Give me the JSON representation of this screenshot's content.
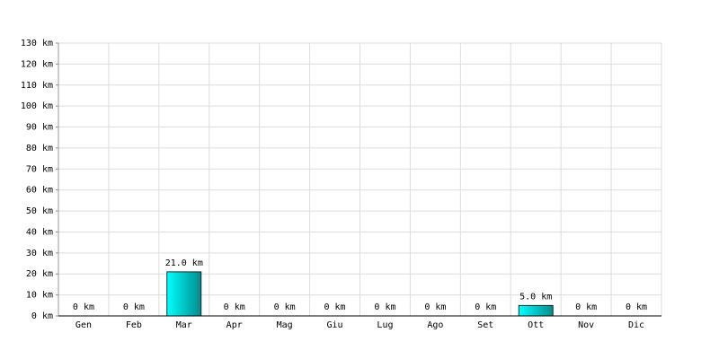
{
  "chart_data": {
    "type": "bar",
    "categories": [
      "Gen",
      "Feb",
      "Mar",
      "Apr",
      "Mag",
      "Giu",
      "Lug",
      "Ago",
      "Set",
      "Ott",
      "Nov",
      "Dic"
    ],
    "values": [
      0,
      0,
      21,
      0,
      0,
      0,
      0,
      0,
      0,
      5,
      0,
      0
    ],
    "value_labels": [
      "0 km",
      "0 km",
      "21.0 km",
      "0 km",
      "0 km",
      "0 km",
      "0 km",
      "0 km",
      "0 km",
      "5.0 km",
      "0 km",
      "0 km"
    ],
    "color": "#00d8d8",
    "ylim": [
      0,
      130
    ],
    "yticks": [
      {
        "value": 0,
        "label": "0 km"
      },
      {
        "value": 10,
        "label": "10 km"
      },
      {
        "value": 20,
        "label": "20 km"
      },
      {
        "value": 30,
        "label": "30 km"
      },
      {
        "value": 40,
        "label": "40 km"
      },
      {
        "value": 50,
        "label": "50 km"
      },
      {
        "value": 60,
        "label": "60 km"
      },
      {
        "value": 70,
        "label": "70 km"
      },
      {
        "value": 80,
        "label": "80 km"
      },
      {
        "value": 90,
        "label": "90 km"
      },
      {
        "value": 100,
        "label": "100 km"
      },
      {
        "value": 110,
        "label": "110 km"
      },
      {
        "value": 120,
        "label": "120 km"
      },
      {
        "value": 130,
        "label": "130 km"
      }
    ],
    "grid": true
  }
}
